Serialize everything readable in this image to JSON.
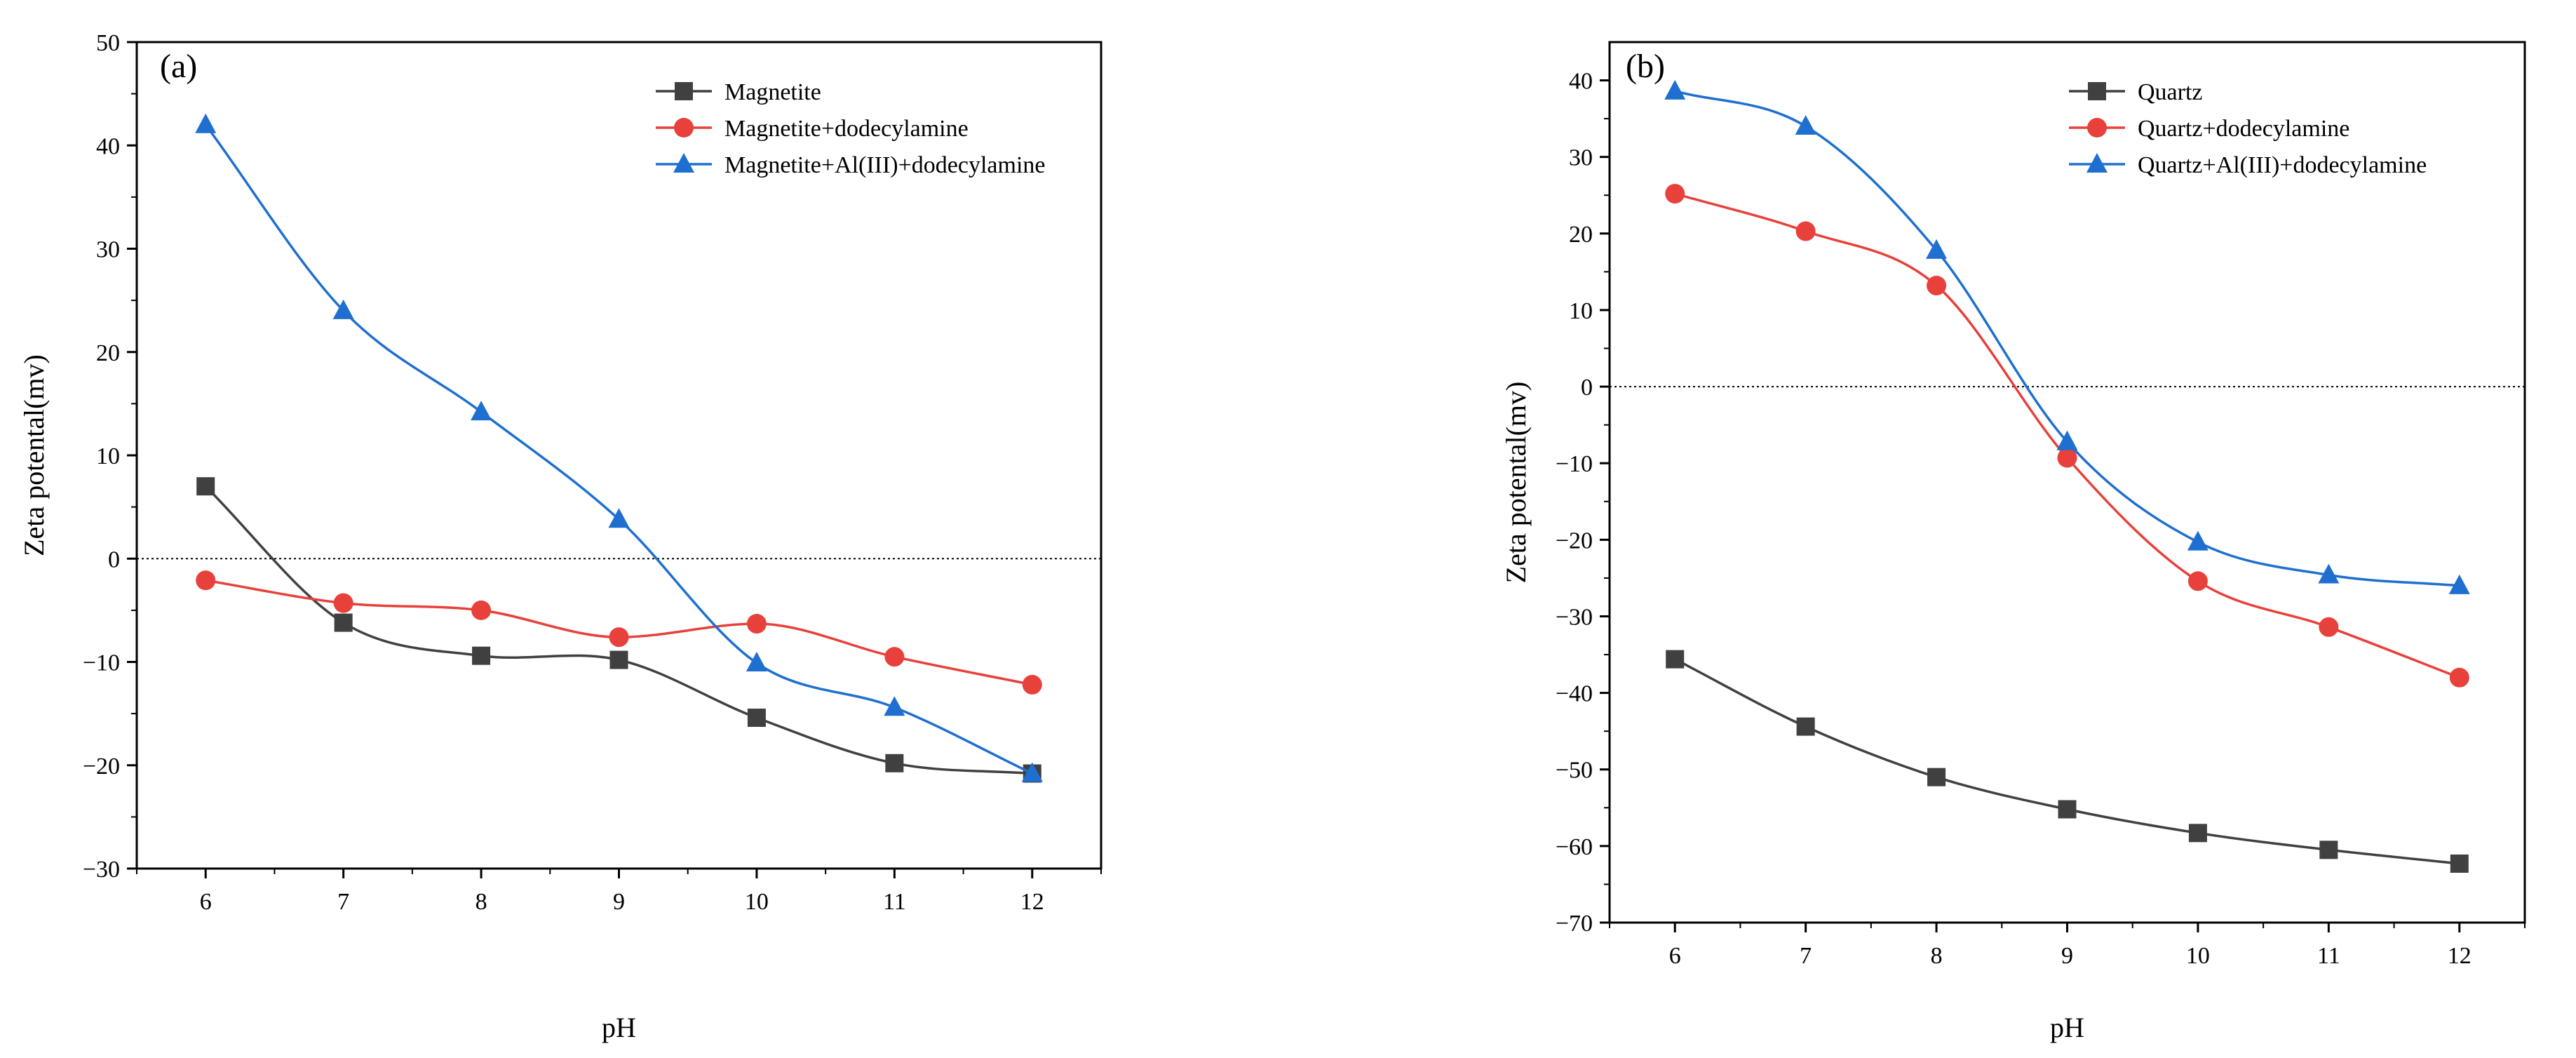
{
  "chart_data": [
    {
      "type": "line",
      "panel_label": "(a)",
      "xlabel": "pH",
      "ylabel": "Zeta potental(mv)",
      "xlim": [
        5.5,
        12.5
      ],
      "ylim": [
        -30,
        50
      ],
      "xticks": [
        6,
        7,
        8,
        9,
        10,
        11,
        12
      ],
      "yticks": [
        -30,
        -20,
        -10,
        0,
        10,
        20,
        30,
        40,
        50
      ],
      "ytick_labels": [
        "−30",
        "−20",
        "−10",
        "0",
        "10",
        "20",
        "30",
        "40",
        "50"
      ],
      "reference_line": 0,
      "legend_position": "top-right",
      "x": [
        6,
        7,
        8,
        9,
        10,
        11,
        12
      ],
      "series": [
        {
          "name": "Magnetite",
          "marker": "square",
          "color": "#404040",
          "values": [
            7,
            -6.2,
            -9.4,
            -9.8,
            -15.4,
            -19.8,
            -20.8
          ]
        },
        {
          "name": "Magnetite+dodecylamine",
          "marker": "circle",
          "color": "#e8403a",
          "values": [
            -2.1,
            -4.3,
            -5,
            -7.6,
            -6.3,
            -9.5,
            -12.2
          ]
        },
        {
          "name": "Magnetite+Al(III)+dodecylamine",
          "marker": "triangle",
          "color": "#1f6fd0",
          "values": [
            42,
            24,
            14.2,
            3.8,
            -10.1,
            -14.4,
            -20.8
          ]
        }
      ]
    },
    {
      "type": "line",
      "panel_label": "(b)",
      "xlabel": "pH",
      "ylabel": "Zeta potental(mv)",
      "xlim": [
        5.5,
        12.5
      ],
      "ylim": [
        -70,
        45
      ],
      "xticks": [
        6,
        7,
        8,
        9,
        10,
        11,
        12
      ],
      "yticks": [
        -70,
        -60,
        -50,
        -40,
        -30,
        -20,
        -10,
        0,
        10,
        20,
        30,
        40
      ],
      "ytick_labels": [
        "−70",
        "−60",
        "−50",
        "−40",
        "−30",
        "−20",
        "−10",
        "0",
        "10",
        "20",
        "30",
        "40"
      ],
      "reference_line": 0,
      "legend_position": "top-right",
      "x": [
        6,
        7,
        8,
        9,
        10,
        11,
        12
      ],
      "series": [
        {
          "name": "Quartz",
          "marker": "square",
          "color": "#404040",
          "values": [
            -35.6,
            -44.4,
            -51,
            -55.2,
            -58.3,
            -60.5,
            -62.3
          ]
        },
        {
          "name": "Quartz+dodecylamine",
          "marker": "circle",
          "color": "#e8403a",
          "values": [
            25.2,
            20.3,
            13.2,
            -9.3,
            -25.4,
            -31.4,
            -38
          ]
        },
        {
          "name": "Quartz+Al(III)+dodecylamine",
          "marker": "triangle",
          "color": "#1f6fd0",
          "values": [
            38.6,
            34,
            17.8,
            -7.2,
            -20.3,
            -24.6,
            -26
          ]
        }
      ]
    }
  ]
}
